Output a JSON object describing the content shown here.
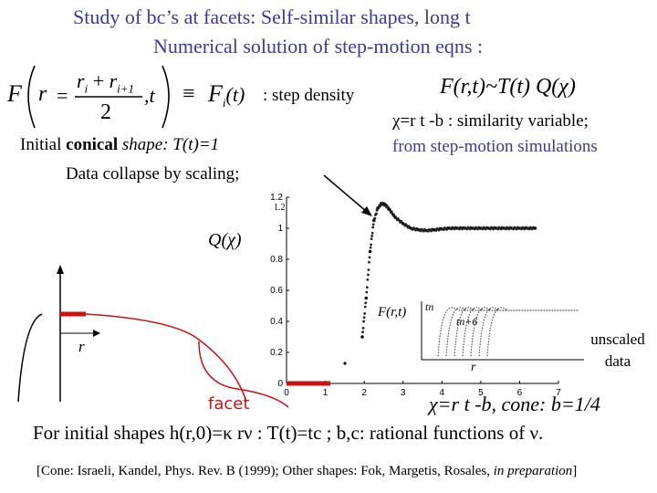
{
  "slide": {
    "title_line1": "Study of  bc’s at facets: Self-similar shapes, long t",
    "title_line2": "Numerical solution of step-motion eqns :",
    "step_density": ": step density",
    "frt": "F(r,t)~T(t) Q(χ)",
    "chi_definition": "χ=r t -b : similarity variable;",
    "simulations": "from step-motion simulations",
    "initial_prefix": "Initial ",
    "initial_bold": "conical",
    "initial_suffix": " shape: T(t)=1",
    "data_collapse": "Data collapse by scaling;",
    "q_chi": "Q(χ)",
    "r_label": "r",
    "unscaled": "unscaled data",
    "facet": "facet",
    "chi_cone": "χ=r t -b, cone: b=1/4",
    "general_shapes": "For initial shapes h(r,0)=κ rν : T(t)=tc ; b,c: rational functions of ν.",
    "citation_prefix": "[Cone: Israeli, Kandel, Phys. Rev. B (1999); Other shapes: Fok, Margetis, Rosales, ",
    "citation_italic": "in preparation",
    "citation_suffix": "]"
  },
  "equation": {
    "F": "F",
    "r": "r",
    "ri": "r",
    "sub_i": "i",
    "plus": "+",
    "ri1": "r",
    "sub_i1": "i+1",
    "two": "2",
    "comma_t": ",t",
    "equiv": "≡",
    "Fi": "F",
    "Fi_sub": "i",
    "Fi_t": "(t)"
  },
  "plot": {
    "y_ticks": [
      "1",
      "0.8",
      "0.6",
      "0.4",
      "0.2",
      "0"
    ],
    "y_tick_top": "1.2",
    "x_ticks": [
      "0",
      "1",
      "2",
      "3",
      "4",
      "5",
      "6",
      "7"
    ],
    "inset_label": "F(r,t)",
    "inset_tn": "tn",
    "inset_tn6": "tn+6",
    "inset_r": "r"
  },
  "chart_data": {
    "type": "scatter",
    "x_ticks": [
      "0",
      "1",
      "2",
      "3",
      "4",
      "5",
      "6",
      "7"
    ],
    "y_ticks": [
      "0",
      "0.2",
      "0.4",
      "0.6",
      "0.8",
      "1",
      "1.2"
    ],
    "xlim": [
      0,
      7
    ],
    "ylim": [
      0,
      1.2
    ],
    "series": [
      {
        "x": [
          1.95,
          2.05,
          2.15,
          2.25,
          2.35,
          2.45,
          2.55,
          2.65,
          2.8,
          3.0,
          3.2,
          3.4,
          3.6,
          3.8,
          4.0,
          4.2,
          4.4,
          4.6,
          4.8,
          5.0,
          5.2,
          5.4,
          5.6,
          5.8,
          6.0,
          6.2,
          6.4
        ],
        "y": [
          0.3,
          0.55,
          0.85,
          1.05,
          1.13,
          1.16,
          1.15,
          1.12,
          1.07,
          1.03,
          1.0,
          0.99,
          0.985,
          0.99,
          0.995,
          1.0,
          1.0,
          1.0,
          1.0,
          1.0,
          1.0,
          1.0,
          1.0,
          1.0,
          1.0,
          1.0,
          1.0
        ]
      }
    ]
  }
}
